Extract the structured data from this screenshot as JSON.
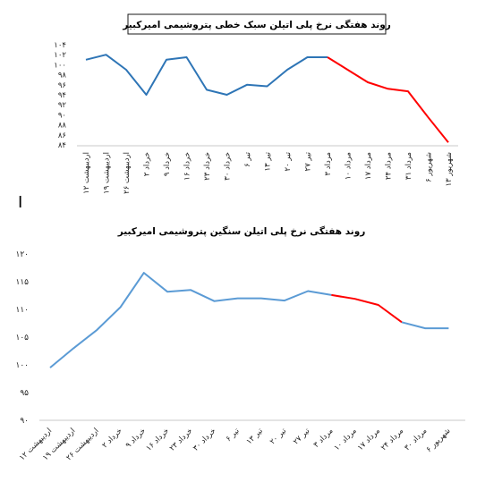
{
  "chart_data": [
    {
      "type": "line",
      "title": "روند هفتگی نرخ پلی اتیلن سبک خطی پتروشیمی امیرکبیر",
      "categories": [
        "۱۲ اردیبهشت",
        "۱۹ اردیبهشت",
        "۲۶ اردیبهشت",
        "۲ خرداد",
        "۹ خرداد",
        "۱۶ خرداد",
        "۲۳ خرداد",
        "۳۰ خرداد",
        "۶ تیر",
        "۱۳ تیر",
        "۲۰ تیر",
        "۲۷ تیر",
        "۳ مرداد",
        "۱۰ مرداد",
        "۱۷ مرداد",
        "۲۴ مرداد",
        "۳۱ مرداد",
        "۶ شهریور",
        "۱۳ شهریور"
      ],
      "values": [
        101,
        102,
        99,
        94,
        101,
        101.5,
        95,
        94,
        96,
        95.7,
        99,
        101.5,
        101.5,
        99,
        96.5,
        95.2,
        94.7,
        89.5,
        84.5
      ],
      "y_tick_labels": [
        "۸۴",
        "۸۶",
        "۸۸",
        "۹۰",
        "۹۲",
        "۹۴",
        "۹۶",
        "۹۸",
        "۱۰۰",
        "۱۰۲",
        "۱۰۴"
      ],
      "ylim": [
        84,
        104
      ],
      "split_index": 12,
      "colors": {
        "actual": "#2e75b6",
        "forecast": "#ff0000"
      },
      "grid": false
    },
    {
      "type": "line",
      "title": "روند هفتگی نرخ پلی اتیلن سنگین پتروشیمی امیرکبیر",
      "categories": [
        "۱۲ اردیبهشت",
        "۱۹ اردیبهشت",
        "۲۶ اردیبهشت",
        "۲ خرداد",
        "۹ خرداد",
        "۱۶ خرداد",
        "۲۳ خرداد",
        "۳۰ خرداد",
        "۶ تیر",
        "۱۳ تیر",
        "۲۰ تیر",
        "۲۷ تیر",
        "۳ مرداد",
        "۱۰ مرداد",
        "۱۷ مرداد",
        "۲۴ مرداد",
        "۳۰ مرداد",
        "۶ شهریور"
      ],
      "values": [
        99.5,
        103,
        106.3,
        110.4,
        116.6,
        113.2,
        113.5,
        111.5,
        112,
        112,
        111.6,
        113.3,
        112.6,
        111.9,
        110.8,
        107.7,
        106.6,
        106.6
      ],
      "y_tick_labels": [
        "۹۰",
        "۹۵",
        "۱۰۰",
        "۱۰۵",
        "۱۱۰",
        "۱۱۵",
        "۱۲۰"
      ],
      "ylim": [
        90,
        120
      ],
      "split_index": 12,
      "split_end": 15,
      "colors": {
        "actual": "#5b9bd5",
        "forecast": "#ff0000"
      },
      "grid": false
    }
  ],
  "marker_text": "I"
}
